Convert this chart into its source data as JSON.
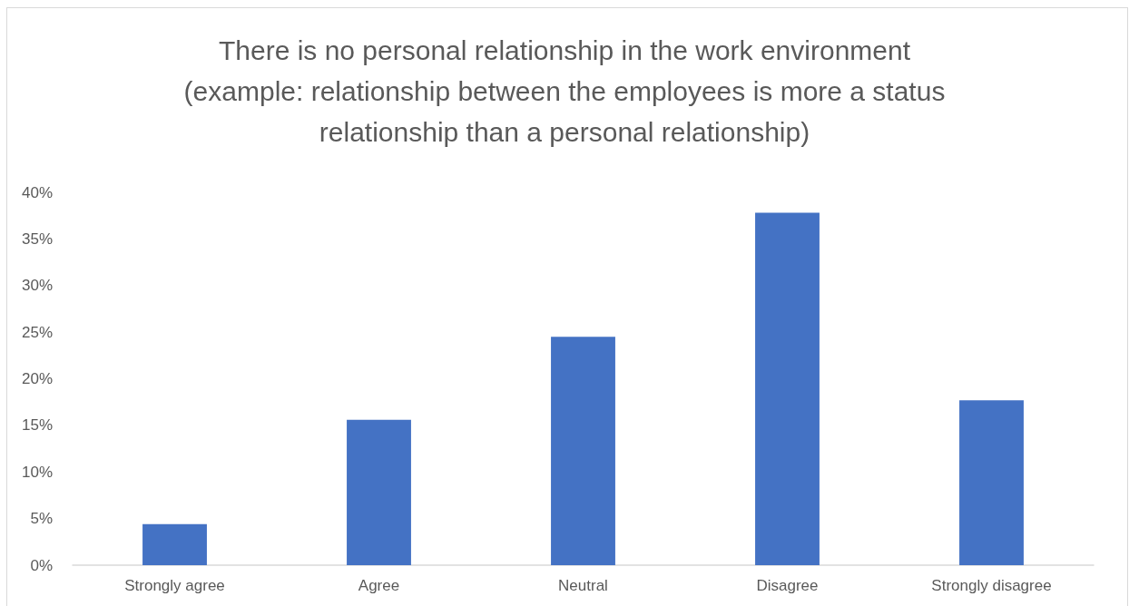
{
  "chart_data": {
    "type": "bar",
    "title": "There is no personal relationship in the work environment (example: relationship between the employees is more a status relationship than a personal relationship)",
    "categories": [
      "Strongly agree",
      "Agree",
      "Neutral",
      "Disagree",
      "Strongly disagree"
    ],
    "values": [
      4.4,
      15.6,
      24.5,
      37.8,
      17.7
    ],
    "color": "#4472c4",
    "ylim": [
      0,
      40
    ],
    "yticks": [
      {
        "value": 0,
        "label": "0%"
      },
      {
        "value": 5,
        "label": "5%"
      },
      {
        "value": 10,
        "label": "10%"
      },
      {
        "value": 15,
        "label": "15%"
      },
      {
        "value": 20,
        "label": "20%"
      },
      {
        "value": 25,
        "label": "25%"
      },
      {
        "value": 30,
        "label": "30%"
      },
      {
        "value": 35,
        "label": "35%"
      },
      {
        "value": 40,
        "label": "40%"
      }
    ]
  }
}
